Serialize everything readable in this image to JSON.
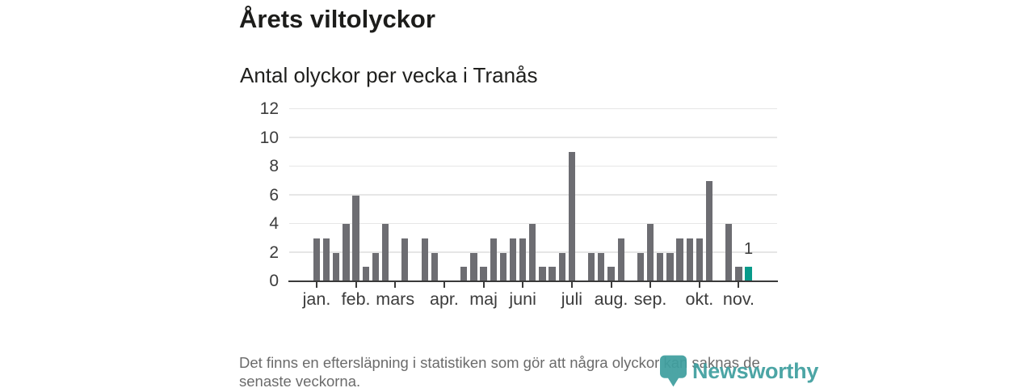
{
  "title": "Årets viltolyckor",
  "subtitle": "Antal olyckor per vecka i Tranås",
  "footer": {
    "lines": [
      "Det finns en eftersläpning i statistiken som gör att några olyckor kan saknas de",
      "senaste veckorna."
    ]
  },
  "logo": {
    "text": "Newsworthy",
    "icon": "newsworthy-pin-barchart-icon"
  },
  "colors": {
    "bar": "#6d6d72",
    "highlight": "#089a8a",
    "axis": "#3a3a3a",
    "grid": "#e6e6e6",
    "label_text": "#3c3c3c",
    "muted_text": "#6b6b6b",
    "logo_teal": "#3f9f9f"
  },
  "chart_data": {
    "type": "bar",
    "title": "Årets viltolyckor",
    "subtitle": "Antal olyckor per vecka i Tranås",
    "x_unit": "vecka",
    "values": [
      3,
      3,
      2,
      4,
      6,
      1,
      2,
      4,
      0,
      3,
      0,
      3,
      2,
      0,
      0,
      1,
      2,
      1,
      3,
      2,
      3,
      3,
      4,
      1,
      1,
      2,
      9,
      0,
      2,
      2,
      1,
      3,
      0,
      2,
      4,
      2,
      2,
      3,
      3,
      3,
      7,
      0,
      4,
      1,
      1
    ],
    "highlight_index": 44,
    "highlight_value_label": "1",
    "y_ticks": [
      0,
      2,
      4,
      6,
      8,
      10,
      12
    ],
    "ylim": [
      0,
      12
    ],
    "grid": true,
    "legend": "none",
    "month_ticks": [
      {
        "label": "jan.",
        "slot": 0
      },
      {
        "label": "feb.",
        "slot": 4
      },
      {
        "label": "mars",
        "slot": 8
      },
      {
        "label": "apr.",
        "slot": 13
      },
      {
        "label": "maj",
        "slot": 17
      },
      {
        "label": "juni",
        "slot": 21
      },
      {
        "label": "juli",
        "slot": 26
      },
      {
        "label": "aug.",
        "slot": 30
      },
      {
        "label": "sep.",
        "slot": 34
      },
      {
        "label": "okt.",
        "slot": 39
      },
      {
        "label": "nov.",
        "slot": 43
      }
    ]
  }
}
